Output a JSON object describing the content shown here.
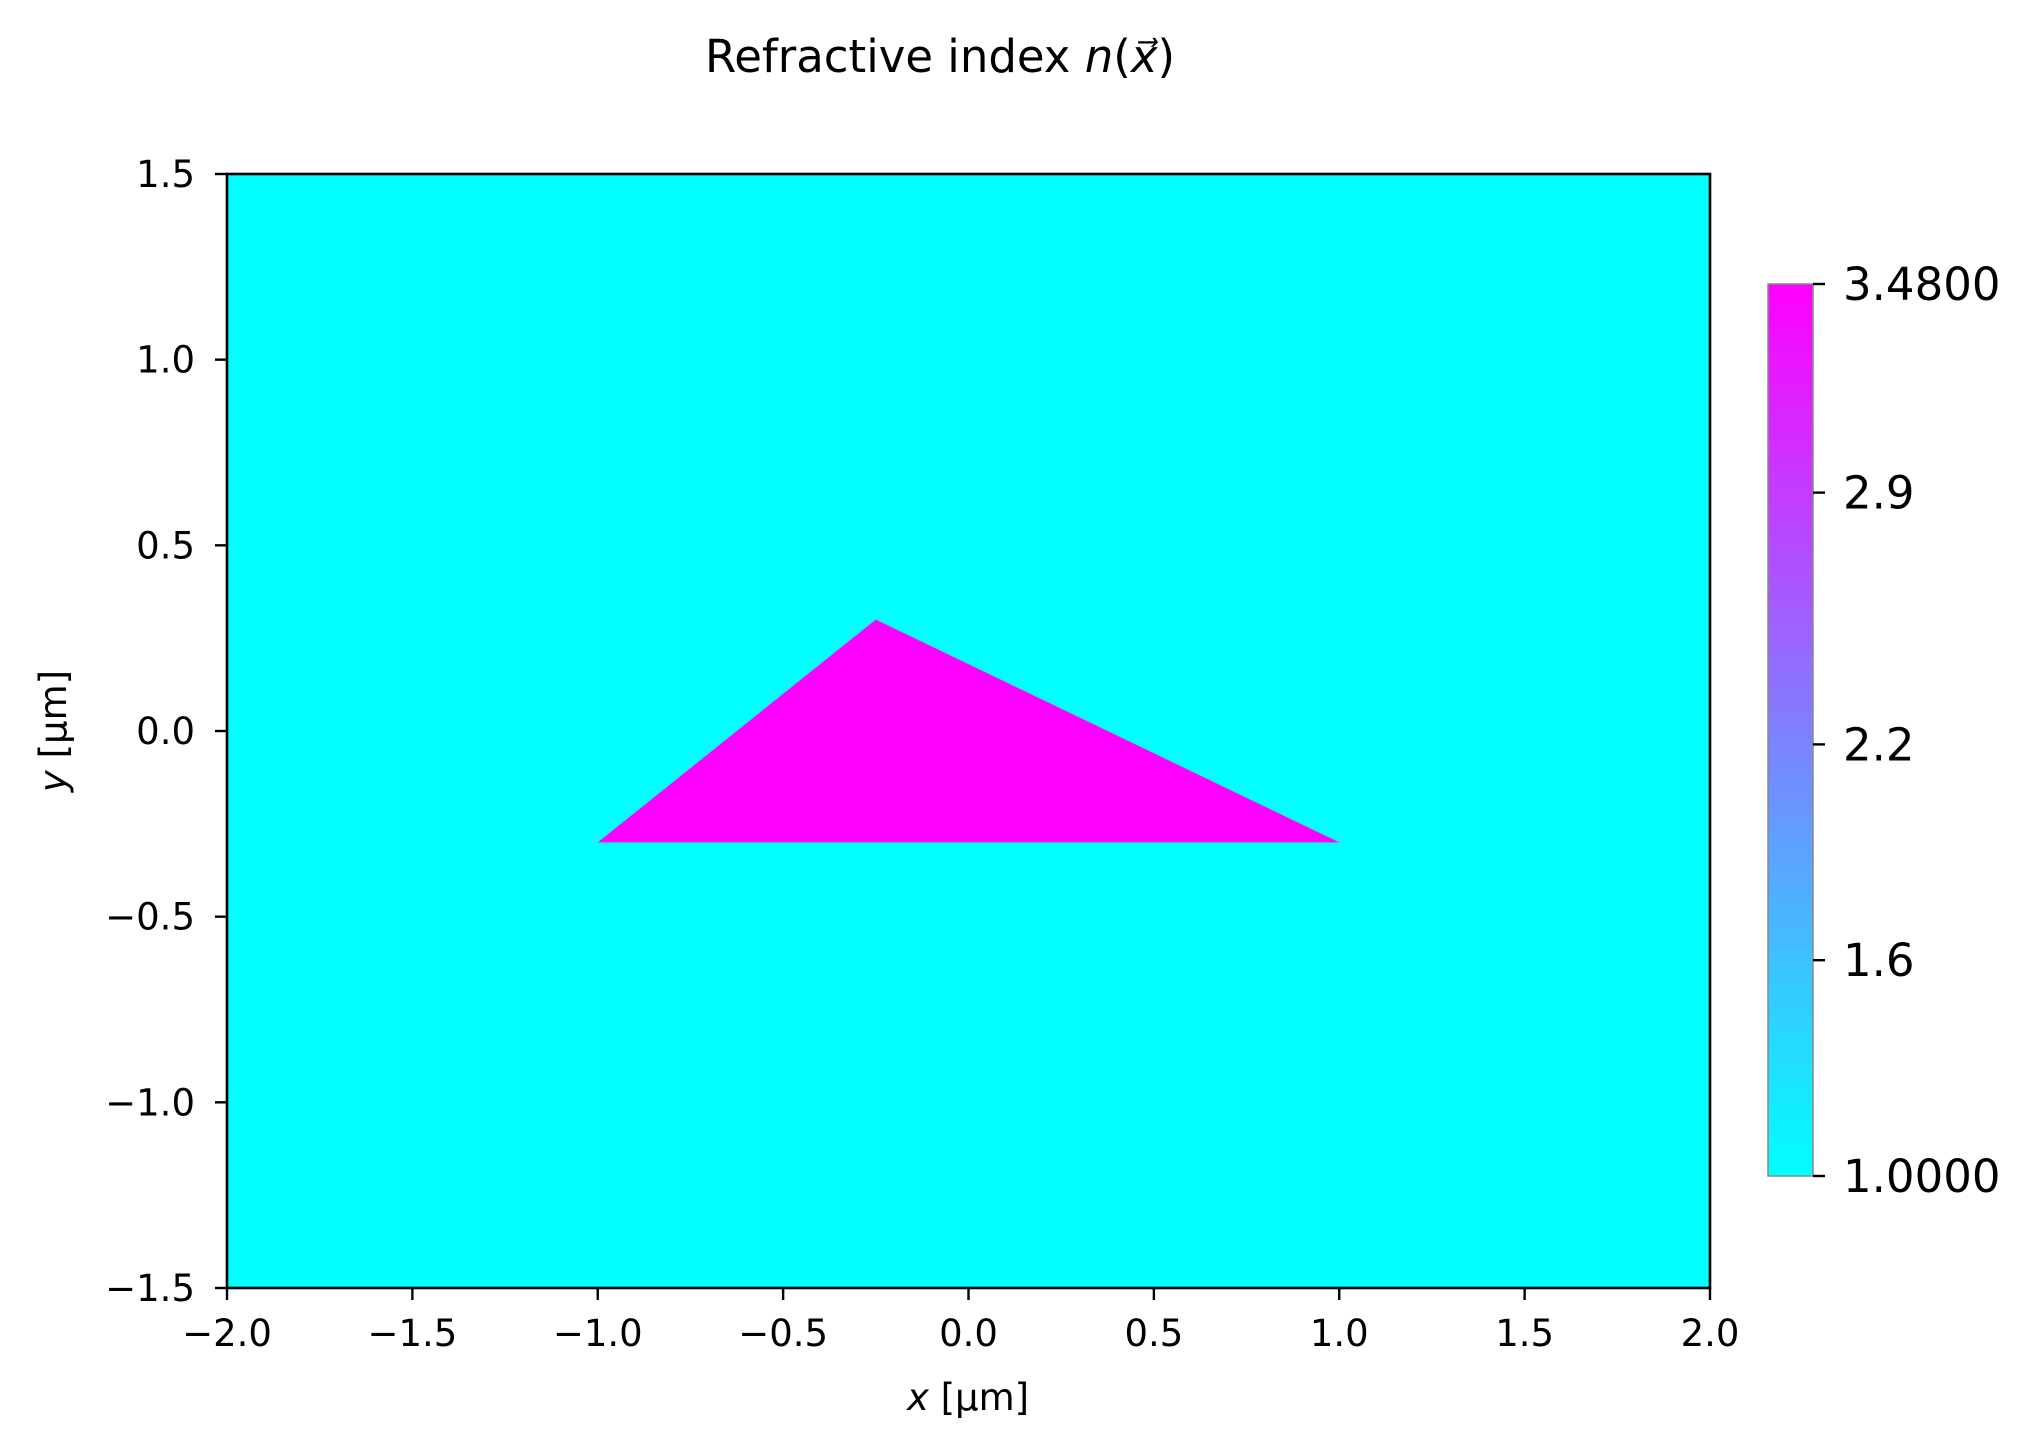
{
  "chart_data": {
    "type": "heatmap",
    "title": "Refractive index n(x⃗)",
    "title_parts": {
      "prefix": "Refractive index ",
      "var": "n",
      "open": "(",
      "arg": "x⃗",
      "close": ")"
    },
    "xlabel": "x [µm]",
    "xlabel_parts": {
      "var": "x",
      "unit": " [µm]"
    },
    "ylabel": "y [µm]",
    "ylabel_parts": {
      "var": "y",
      "unit": " [µm]"
    },
    "xlim": [
      -2.0,
      2.0
    ],
    "ylim": [
      -1.5,
      1.5
    ],
    "x_ticks": [
      -2.0,
      -1.5,
      -1.0,
      -0.5,
      0.0,
      0.5,
      1.0,
      1.5,
      2.0
    ],
    "x_tick_labels": [
      "−2.0",
      "−1.5",
      "−1.0",
      "−0.5",
      "0.0",
      "0.5",
      "1.0",
      "1.5",
      "2.0"
    ],
    "y_ticks": [
      1.5,
      1.0,
      0.5,
      0.0,
      -0.5,
      -1.0,
      -1.5
    ],
    "y_tick_labels": [
      "1.5",
      "1.0",
      "0.5",
      "0.0",
      "−0.5",
      "−1.0",
      "−1.5"
    ],
    "background_value": 1.0,
    "regions": [
      {
        "shape": "triangle",
        "value": 3.48,
        "vertices": [
          [
            -1.0,
            -0.3
          ],
          [
            -0.25,
            0.3
          ],
          [
            1.0,
            -0.3
          ]
        ]
      }
    ],
    "colormap": "cool",
    "colormap_colors": {
      "low": "#00ffff",
      "high": "#ff00ff"
    },
    "colorbar": {
      "range": [
        1.0,
        3.48
      ],
      "ticks": [
        3.48,
        2.9,
        2.2,
        1.6,
        1.0
      ],
      "tick_labels": [
        "3.4800",
        "2.9",
        "2.2",
        "1.6",
        "1.0000"
      ]
    },
    "grid": false,
    "legend": "none"
  }
}
